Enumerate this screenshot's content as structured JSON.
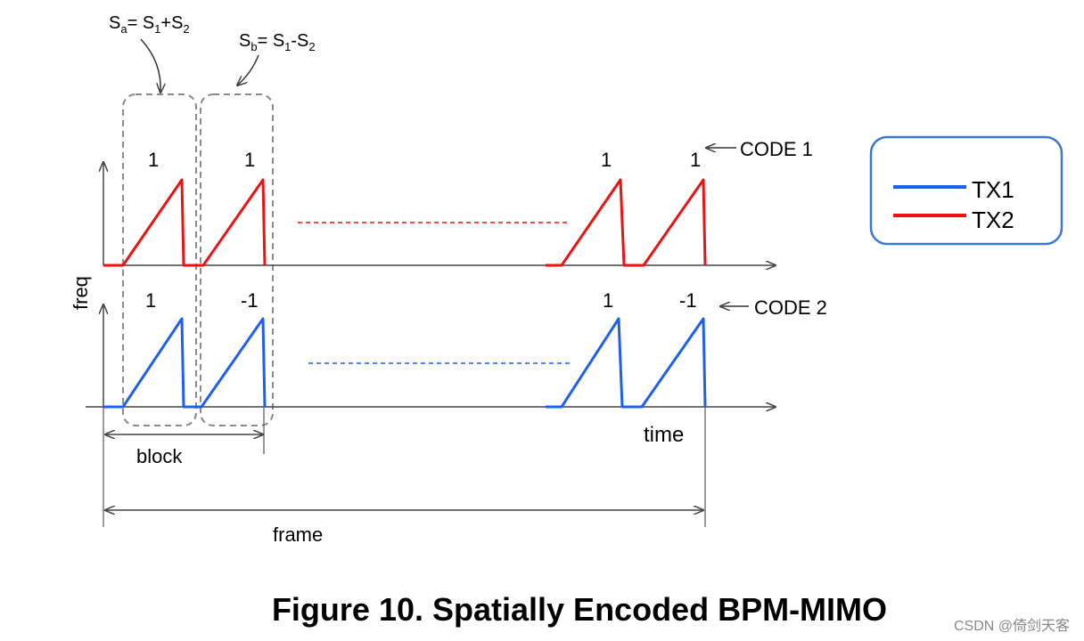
{
  "annotations": {
    "sa": {
      "s": "S",
      "sub_a": "a",
      "eq": "= S",
      "sub_1": "1",
      "plus": "+S",
      "sub_2": "2"
    },
    "sb": {
      "s": "S",
      "sub_b": "b",
      "eq": "= S",
      "sub_1": "1",
      "minus": "-S",
      "sub_2": "2"
    },
    "code1": "CODE 1",
    "code2": "CODE 2"
  },
  "axes": {
    "freq": "freq",
    "time": "time"
  },
  "dimensions": {
    "block": "block",
    "frame": "frame"
  },
  "codes": {
    "tx2": [
      "1",
      "1",
      "1",
      "1"
    ],
    "tx1": [
      "1",
      "-1",
      "1",
      "-1"
    ]
  },
  "legend": {
    "items": [
      {
        "label": "TX1",
        "color": "#1f5ff0"
      },
      {
        "label": "TX2",
        "color": "#ee1111"
      }
    ]
  },
  "colors": {
    "tx1": "#1f5ff0",
    "tx2": "#ee1111",
    "dashed_box": "#8a8a8a",
    "axis": "#444444"
  },
  "caption": "Figure 10. Spatially Encoded BPM-MIMO",
  "watermark": "CSDN @倚剑天客"
}
